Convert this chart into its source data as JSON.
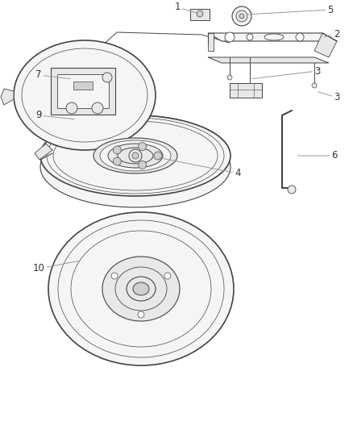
{
  "bg_color": "#ffffff",
  "line_color": "#444444",
  "label_color": "#333333",
  "label_fontsize": 8.5,
  "fig_width": 4.38,
  "fig_height": 5.33,
  "dpi": 100,
  "fill_light": "#f5f5f5",
  "fill_mid": "#e8e8e8",
  "fill_dark": "#d0d0d0"
}
